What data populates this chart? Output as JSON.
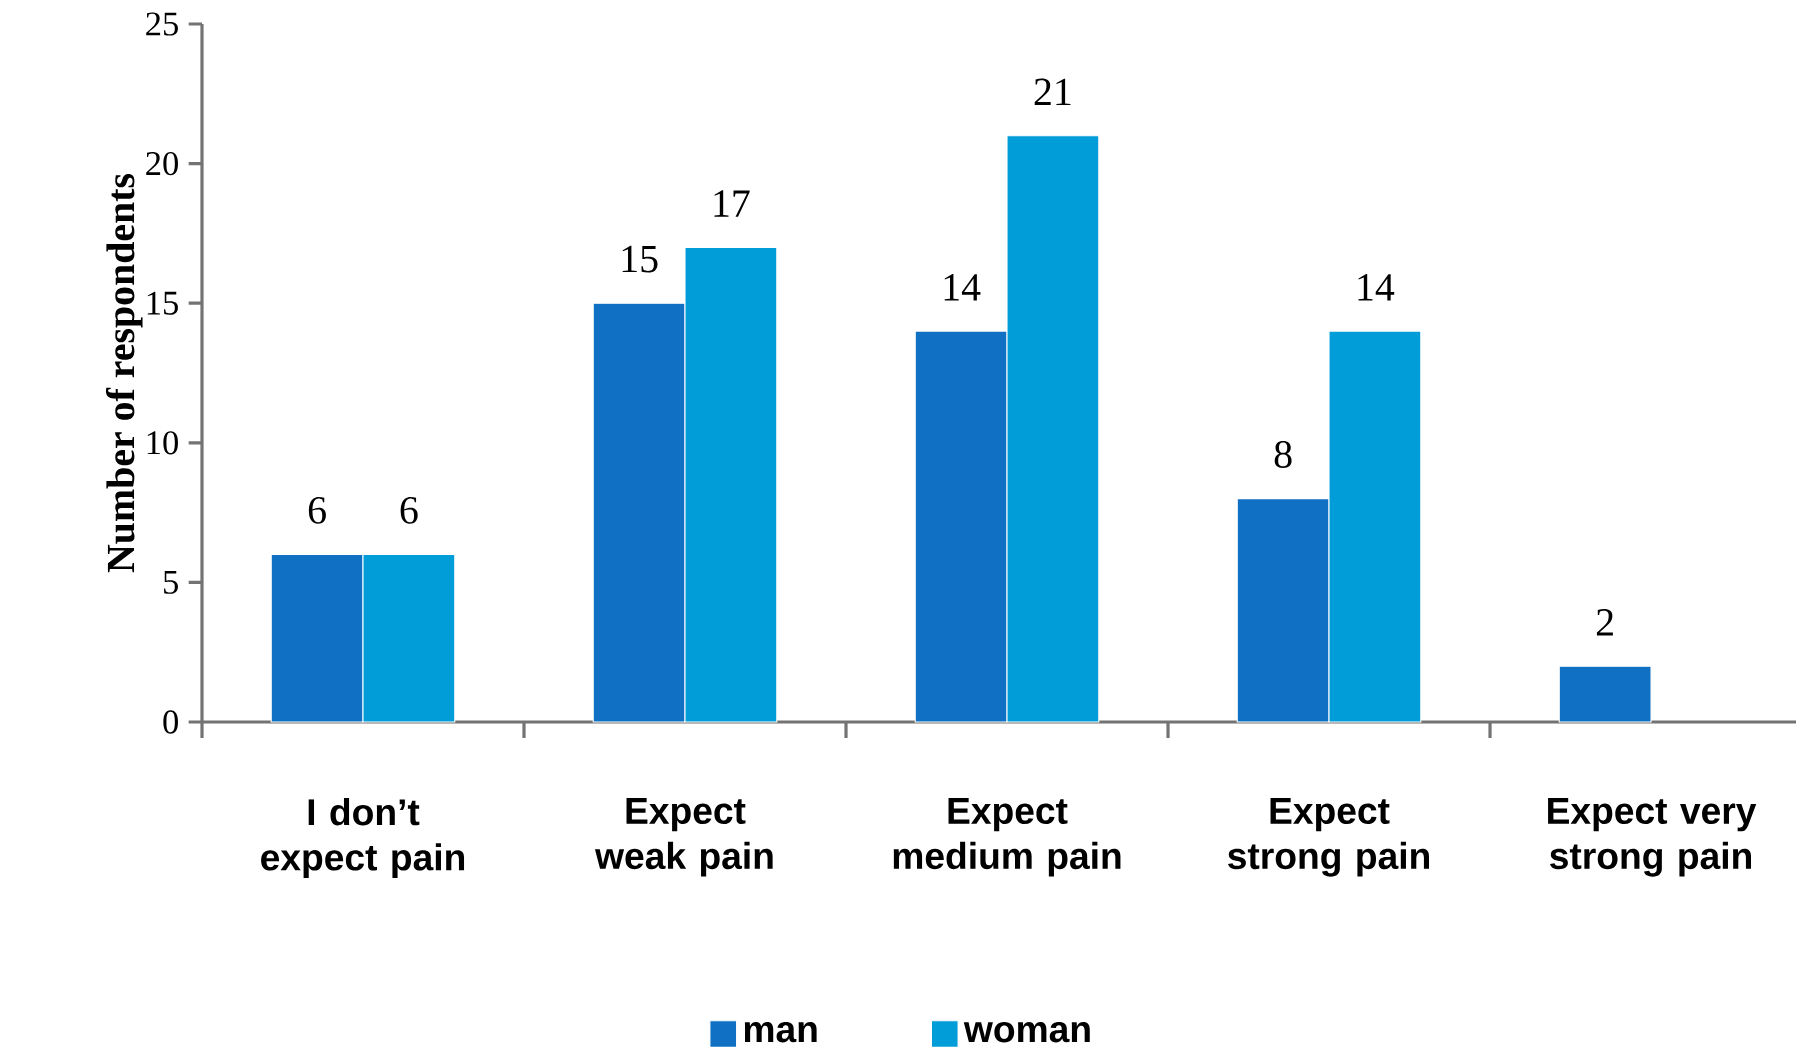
{
  "chart_data": {
    "type": "bar",
    "ylabel": "Number of respondents",
    "categories": [
      "I don’t expect pain",
      "Expect weak pain",
      "Expect medium pain",
      "Expect strong pain",
      "Expect very strong pain"
    ],
    "series": [
      {
        "name": "man",
        "color": "#0f70c4",
        "values": [
          6,
          15,
          14,
          8,
          2
        ]
      },
      {
        "name": "woman",
        "color": "#009dd9",
        "values": [
          6,
          17,
          21,
          14,
          null
        ]
      }
    ],
    "ylim": [
      0,
      25
    ],
    "yticks": [
      0,
      5,
      10,
      15,
      20,
      25
    ],
    "data_labels": true,
    "legend": "bottom"
  }
}
